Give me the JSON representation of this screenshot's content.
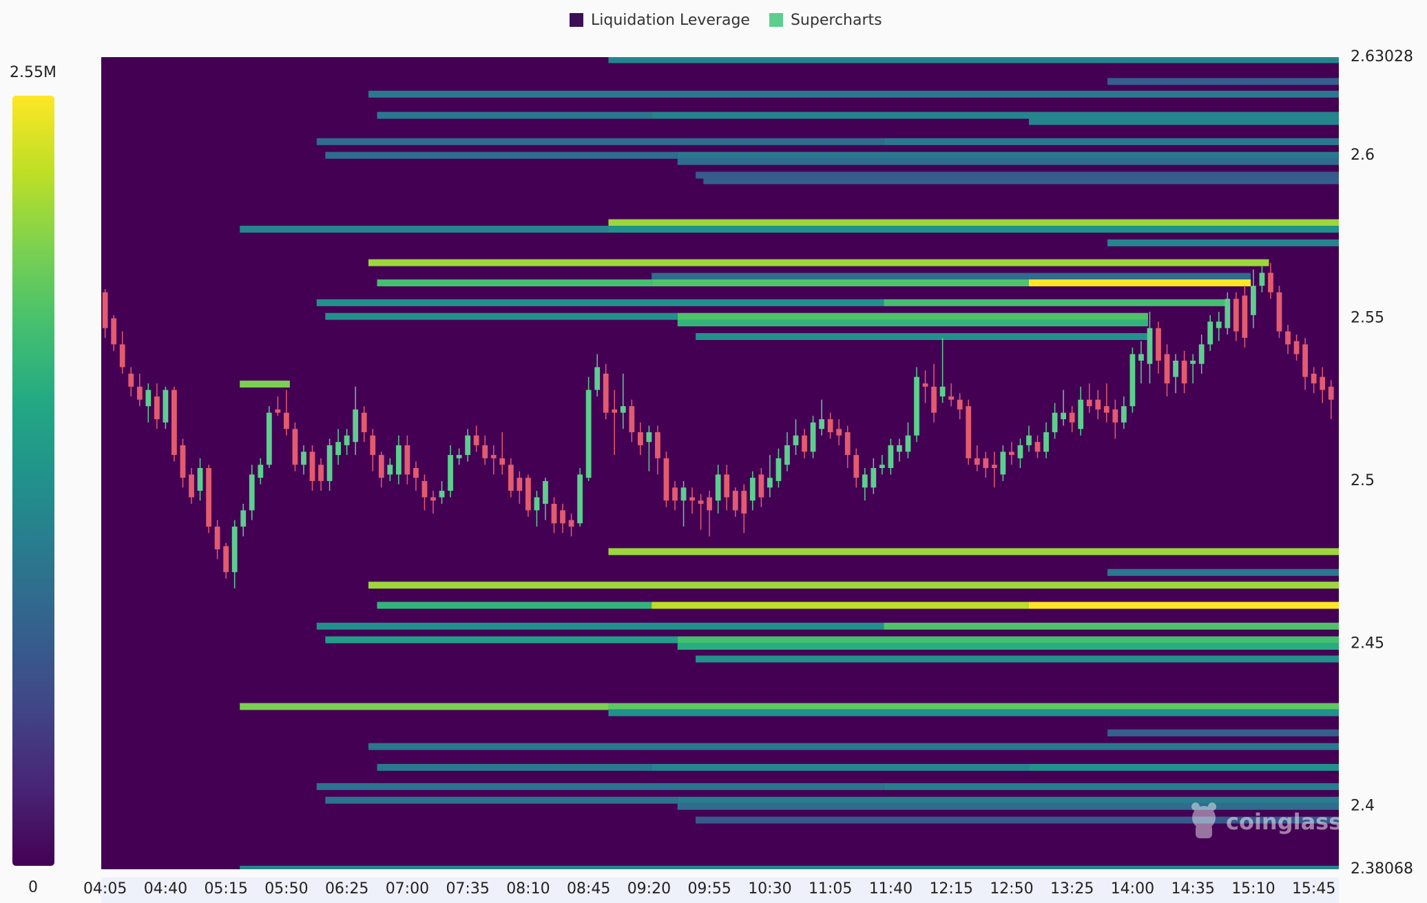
{
  "chart_data": {
    "type": "heatmap",
    "legend": [
      {
        "name": "Liquidation Leverage",
        "color": "#3d0f54"
      },
      {
        "name": "Supercharts",
        "color": "#5ccf8e"
      }
    ],
    "up_color": "#5ccf8e",
    "down_color": "#e25b6e",
    "watermark": "coinglass",
    "colorscale": [
      "#440154",
      "#482475",
      "#414487",
      "#355f8d",
      "#2a788e",
      "#21918c",
      "#22a884",
      "#44bf70",
      "#7ad151",
      "#bddf26",
      "#fde725"
    ],
    "clim": [
      0,
      2550000
    ],
    "colorbar_ticks": [
      0,
      {
        "value": 2550000,
        "label": "2.55M"
      }
    ],
    "xlim": [
      -0.45,
      142.9
    ],
    "xticks": [
      {
        "value": 0,
        "label": "04:05"
      },
      {
        "value": 7,
        "label": "04:40"
      },
      {
        "value": 14,
        "label": "05:15"
      },
      {
        "value": 21,
        "label": "05:50"
      },
      {
        "value": 28,
        "label": "06:25"
      },
      {
        "value": 35,
        "label": "07:00"
      },
      {
        "value": 42,
        "label": "07:35"
      },
      {
        "value": 49,
        "label": "08:10"
      },
      {
        "value": 56,
        "label": "08:45"
      },
      {
        "value": 63,
        "label": "09:20"
      },
      {
        "value": 70,
        "label": "09:55"
      },
      {
        "value": 77,
        "label": "10:30"
      },
      {
        "value": 84,
        "label": "11:05"
      },
      {
        "value": 91,
        "label": "11:40"
      },
      {
        "value": 98,
        "label": "12:15"
      },
      {
        "value": 105,
        "label": "12:50"
      },
      {
        "value": 112,
        "label": "13:25"
      },
      {
        "value": 119,
        "label": "14:00"
      },
      {
        "value": 126,
        "label": "14:35"
      },
      {
        "value": 133,
        "label": "15:10"
      },
      {
        "value": 140,
        "label": "15:45"
      }
    ],
    "ylim": [
      2.38068,
      2.63028
    ],
    "yticks": [
      2.63028,
      2.6,
      2.55,
      2.5,
      2.45,
      2.4,
      2.38068
    ],
    "bands": [
      [
        2.6295,
        58.3,
        142.9,
        1148000
      ],
      [
        2.6228,
        116.1,
        142.9,
        765000
      ],
      [
        2.6189,
        30.5,
        142.9,
        1020000
      ],
      [
        2.6124,
        31.5,
        63.3,
        1020000
      ],
      [
        2.6124,
        63.3,
        142.9,
        1148000
      ],
      [
        2.6105,
        107.0,
        142.9,
        1148000
      ],
      [
        2.6043,
        24.5,
        90.2,
        893000
      ],
      [
        2.6043,
        90.2,
        142.9,
        1020000
      ],
      [
        2.6001,
        25.5,
        66.3,
        893000
      ],
      [
        2.6001,
        66.3,
        142.9,
        1020000
      ],
      [
        2.5982,
        66.3,
        142.9,
        893000
      ],
      [
        2.594,
        68.4,
        142.9,
        714000
      ],
      [
        2.5923,
        69.3,
        142.9,
        765000
      ],
      [
        2.5794,
        58.3,
        142.9,
        2168000
      ],
      [
        2.5774,
        15.6,
        58.3,
        1148000
      ],
      [
        2.5774,
        58.3,
        142.9,
        1275000
      ],
      [
        2.5732,
        116.1,
        142.9,
        1148000
      ],
      [
        2.5671,
        30.5,
        134.8,
        2168000
      ],
      [
        2.5629,
        63.3,
        132.7,
        893000
      ],
      [
        2.5609,
        31.5,
        63.3,
        1785000
      ],
      [
        2.5609,
        63.3,
        107.0,
        1836000
      ],
      [
        2.5609,
        107.0,
        132.7,
        2550000
      ],
      [
        2.5548,
        24.5,
        90.2,
        1275000
      ],
      [
        2.5548,
        90.2,
        129.9,
        1785000
      ],
      [
        2.5506,
        25.5,
        66.3,
        1275000
      ],
      [
        2.5506,
        66.3,
        120.8,
        1836000
      ],
      [
        2.5486,
        66.3,
        120.8,
        1658000
      ],
      [
        2.5444,
        68.4,
        120.8,
        1275000
      ],
      [
        2.5298,
        15.6,
        21.4,
        2040000
      ],
      [
        2.4783,
        58.3,
        142.9,
        2168000
      ],
      [
        2.4719,
        116.1,
        142.9,
        1020000
      ],
      [
        2.468,
        30.5,
        142.9,
        2168000
      ],
      [
        2.4618,
        31.5,
        63.3,
        1658000
      ],
      [
        2.4618,
        63.3,
        107.0,
        2295000
      ],
      [
        2.4618,
        107.0,
        142.9,
        2550000
      ],
      [
        2.4554,
        24.5,
        90.2,
        1275000
      ],
      [
        2.4554,
        90.2,
        142.9,
        1836000
      ],
      [
        2.4512,
        25.5,
        66.3,
        1403000
      ],
      [
        2.4512,
        66.3,
        142.9,
        1785000
      ],
      [
        2.4492,
        66.3,
        142.9,
        1581000
      ],
      [
        2.4453,
        68.4,
        142.9,
        1275000
      ],
      [
        2.4307,
        15.6,
        58.3,
        2040000
      ],
      [
        2.4307,
        58.3,
        142.9,
        1913000
      ],
      [
        2.4288,
        58.3,
        142.9,
        1275000
      ],
      [
        2.4226,
        116.1,
        142.9,
        765000
      ],
      [
        2.4184,
        30.5,
        142.9,
        1020000
      ],
      [
        2.412,
        31.5,
        63.3,
        1020000
      ],
      [
        2.412,
        63.3,
        107.0,
        1148000
      ],
      [
        2.412,
        107.0,
        142.9,
        1275000
      ],
      [
        2.4061,
        24.5,
        90.2,
        970000
      ],
      [
        2.4061,
        90.2,
        142.9,
        1071000
      ],
      [
        2.4019,
        25.5,
        66.3,
        970000
      ],
      [
        2.4019,
        66.3,
        142.9,
        1071000
      ],
      [
        2.4,
        66.3,
        142.9,
        893000
      ],
      [
        2.3958,
        68.4,
        142.9,
        714000
      ],
      [
        2.3807,
        15.6,
        142.9,
        1148000
      ]
    ],
    "candles": [
      [
        2.558,
        2.559,
        2.544,
        2.547
      ],
      [
        2.55,
        2.551,
        2.54,
        2.542
      ],
      [
        2.542,
        2.546,
        2.533,
        2.535
      ],
      [
        2.533,
        2.535,
        2.526,
        2.529
      ],
      [
        2.529,
        2.533,
        2.523,
        2.525
      ],
      [
        2.523,
        2.53,
        2.518,
        2.528
      ],
      [
        2.526,
        2.53,
        2.516,
        2.519
      ],
      [
        2.518,
        2.529,
        2.516,
        2.528
      ],
      [
        2.528,
        2.529,
        2.506,
        2.508
      ],
      [
        2.511,
        2.513,
        2.498,
        2.501
      ],
      [
        2.502,
        2.504,
        2.493,
        2.495
      ],
      [
        2.497,
        2.507,
        2.494,
        2.504
      ],
      [
        2.504,
        2.505,
        2.484,
        2.486
      ],
      [
        2.486,
        2.488,
        2.476,
        2.479
      ],
      [
        2.48,
        2.481,
        2.47,
        2.472
      ],
      [
        2.472,
        2.488,
        2.467,
        2.486
      ],
      [
        2.486,
        2.493,
        2.483,
        2.491
      ],
      [
        2.491,
        2.505,
        2.488,
        2.502
      ],
      [
        2.501,
        2.507,
        2.499,
        2.505
      ],
      [
        2.505,
        2.523,
        2.504,
        2.521
      ],
      [
        2.522,
        2.526,
        2.52,
        2.521
      ],
      [
        2.521,
        2.528,
        2.514,
        2.516
      ],
      [
        2.516,
        2.518,
        2.503,
        2.505
      ],
      [
        2.505,
        2.511,
        2.502,
        2.509
      ],
      [
        2.509,
        2.511,
        2.497,
        2.5
      ],
      [
        2.505,
        2.507,
        2.497,
        2.5
      ],
      [
        2.5,
        2.513,
        2.497,
        2.511
      ],
      [
        2.508,
        2.516,
        2.505,
        2.512
      ],
      [
        2.511,
        2.516,
        2.508,
        2.514
      ],
      [
        2.512,
        2.529,
        2.508,
        2.522
      ],
      [
        2.521,
        2.523,
        2.512,
        2.515
      ],
      [
        2.514,
        2.516,
        2.503,
        2.508
      ],
      [
        2.508,
        2.509,
        2.498,
        2.501
      ],
      [
        2.502,
        2.507,
        2.5,
        2.505
      ],
      [
        2.502,
        2.514,
        2.499,
        2.511
      ],
      [
        2.511,
        2.514,
        2.499,
        2.502
      ],
      [
        2.504,
        2.506,
        2.497,
        2.501
      ],
      [
        2.5,
        2.502,
        2.491,
        2.495
      ],
      [
        2.495,
        2.497,
        2.49,
        2.494
      ],
      [
        2.495,
        2.5,
        2.493,
        2.497
      ],
      [
        2.497,
        2.511,
        2.495,
        2.508
      ],
      [
        2.507,
        2.51,
        2.505,
        2.508
      ],
      [
        2.508,
        2.516,
        2.506,
        2.514
      ],
      [
        2.514,
        2.517,
        2.509,
        2.511
      ],
      [
        2.511,
        2.514,
        2.505,
        2.507
      ],
      [
        2.508,
        2.511,
        2.502,
        2.507
      ],
      [
        2.507,
        2.515,
        2.502,
        2.505
      ],
      [
        2.505,
        2.507,
        2.495,
        2.497
      ],
      [
        2.501,
        2.503,
        2.493,
        2.497
      ],
      [
        2.501,
        2.502,
        2.489,
        2.491
      ],
      [
        2.491,
        2.497,
        2.486,
        2.495
      ],
      [
        2.493,
        2.501,
        2.488,
        2.5
      ],
      [
        2.493,
        2.495,
        2.484,
        2.487
      ],
      [
        2.491,
        2.493,
        2.484,
        2.487
      ],
      [
        2.488,
        2.49,
        2.483,
        2.486
      ],
      [
        2.487,
        2.504,
        2.486,
        2.502
      ],
      [
        2.501,
        2.532,
        2.5,
        2.528
      ],
      [
        2.528,
        2.539,
        2.526,
        2.535
      ],
      [
        2.533,
        2.536,
        2.519,
        2.521
      ],
      [
        2.522,
        2.528,
        2.508,
        2.521
      ],
      [
        2.521,
        2.533,
        2.516,
        2.523
      ],
      [
        2.523,
        2.525,
        2.512,
        2.515
      ],
      [
        2.515,
        2.518,
        2.508,
        2.511
      ],
      [
        2.512,
        2.517,
        2.503,
        2.515
      ],
      [
        2.515,
        2.517,
        2.502,
        2.507
      ],
      [
        2.507,
        2.509,
        2.492,
        2.494
      ],
      [
        2.498,
        2.5,
        2.491,
        2.494
      ],
      [
        2.494,
        2.5,
        2.486,
        2.498
      ],
      [
        2.495,
        2.498,
        2.49,
        2.494
      ],
      [
        2.494,
        2.496,
        2.485,
        2.493
      ],
      [
        2.495,
        2.497,
        2.483,
        2.491
      ],
      [
        2.494,
        2.505,
        2.49,
        2.502
      ],
      [
        2.502,
        2.505,
        2.491,
        2.495
      ],
      [
        2.497,
        2.498,
        2.489,
        2.491
      ],
      [
        2.497,
        2.499,
        2.484,
        2.49
      ],
      [
        2.494,
        2.503,
        2.491,
        2.501
      ],
      [
        2.502,
        2.504,
        2.492,
        2.495
      ],
      [
        2.498,
        2.508,
        2.495,
        2.501
      ],
      [
        2.5,
        2.51,
        2.498,
        2.507
      ],
      [
        2.505,
        2.515,
        2.503,
        2.511
      ],
      [
        2.511,
        2.519,
        2.508,
        2.514
      ],
      [
        2.514,
        2.516,
        2.507,
        2.509
      ],
      [
        2.509,
        2.52,
        2.507,
        2.518
      ],
      [
        2.516,
        2.525,
        2.514,
        2.519
      ],
      [
        2.519,
        2.521,
        2.513,
        2.515
      ],
      [
        2.516,
        2.519,
        2.511,
        2.514
      ],
      [
        2.515,
        2.517,
        2.504,
        2.508
      ],
      [
        2.508,
        2.51,
        2.498,
        2.501
      ],
      [
        2.498,
        2.504,
        2.494,
        2.502
      ],
      [
        2.498,
        2.507,
        2.496,
        2.504
      ],
      [
        2.504,
        2.508,
        2.502,
        2.505
      ],
      [
        2.504,
        2.513,
        2.502,
        2.511
      ],
      [
        2.509,
        2.513,
        2.506,
        2.511
      ],
      [
        2.509,
        2.518,
        2.507,
        2.514
      ],
      [
        2.514,
        2.535,
        2.512,
        2.532
      ],
      [
        2.53,
        2.534,
        2.524,
        2.529
      ],
      [
        2.529,
        2.536,
        2.518,
        2.521
      ],
      [
        2.526,
        2.544,
        2.524,
        2.529
      ],
      [
        2.526,
        2.53,
        2.523,
        2.525
      ],
      [
        2.525,
        2.527,
        2.519,
        2.522
      ],
      [
        2.523,
        2.525,
        2.505,
        2.507
      ],
      [
        2.507,
        2.511,
        2.503,
        2.505
      ],
      [
        2.507,
        2.509,
        2.501,
        2.504
      ],
      [
        2.505,
        2.509,
        2.498,
        2.504
      ],
      [
        2.502,
        2.511,
        2.5,
        2.509
      ],
      [
        2.509,
        2.512,
        2.505,
        2.508
      ],
      [
        2.507,
        2.513,
        2.504,
        2.511
      ],
      [
        2.511,
        2.517,
        2.509,
        2.514
      ],
      [
        2.512,
        2.514,
        2.507,
        2.509
      ],
      [
        2.509,
        2.518,
        2.507,
        2.515
      ],
      [
        2.515,
        2.524,
        2.513,
        2.521
      ],
      [
        2.519,
        2.528,
        2.517,
        2.521
      ],
      [
        2.521,
        2.523,
        2.515,
        2.518
      ],
      [
        2.516,
        2.529,
        2.514,
        2.525
      ],
      [
        2.525,
        2.53,
        2.521,
        2.523
      ],
      [
        2.525,
        2.528,
        2.519,
        2.522
      ],
      [
        2.523,
        2.53,
        2.518,
        2.521
      ],
      [
        2.522,
        2.525,
        2.513,
        2.518
      ],
      [
        2.518,
        2.526,
        2.516,
        2.523
      ],
      [
        2.523,
        2.541,
        2.521,
        2.539
      ],
      [
        2.537,
        2.543,
        2.53,
        2.539
      ],
      [
        2.536,
        2.552,
        2.53,
        2.547
      ],
      [
        2.547,
        2.549,
        2.533,
        2.537
      ],
      [
        2.539,
        2.542,
        2.526,
        2.53
      ],
      [
        2.532,
        2.539,
        2.527,
        2.537
      ],
      [
        2.537,
        2.54,
        2.527,
        2.53
      ],
      [
        2.536,
        2.539,
        2.53,
        2.537
      ],
      [
        2.536,
        2.545,
        2.533,
        2.542
      ],
      [
        2.542,
        2.551,
        2.54,
        2.549
      ],
      [
        2.547,
        2.552,
        2.543,
        2.549
      ],
      [
        2.547,
        2.558,
        2.545,
        2.556
      ],
      [
        2.556,
        2.558,
        2.543,
        2.546
      ],
      [
        2.557,
        2.56,
        2.541,
        2.544
      ],
      [
        2.551,
        2.565,
        2.547,
        2.56
      ],
      [
        2.56,
        2.566,
        2.558,
        2.564
      ],
      [
        2.564,
        2.567,
        2.556,
        2.558
      ],
      [
        2.558,
        2.56,
        2.544,
        2.546
      ],
      [
        2.546,
        2.548,
        2.539,
        2.542
      ],
      [
        2.543,
        2.545,
        2.537,
        2.539
      ],
      [
        2.542,
        2.544,
        2.528,
        2.532
      ],
      [
        2.533,
        2.535,
        2.527,
        2.53
      ],
      [
        2.532,
        2.535,
        2.524,
        2.528
      ],
      [
        2.529,
        2.531,
        2.519,
        2.525
      ]
    ]
  }
}
